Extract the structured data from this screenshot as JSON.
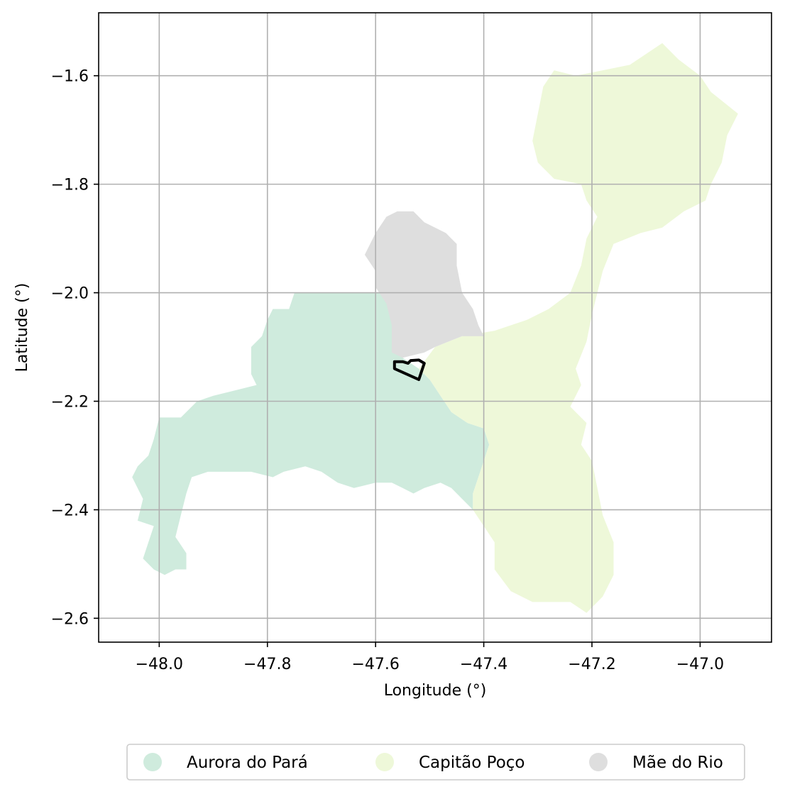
{
  "chart_data": {
    "type": "map",
    "title": "",
    "xlabel": "Longitude (°)",
    "ylabel": "Latitude (°)",
    "xlim": [
      -48.112,
      -46.868
    ],
    "ylim": [
      -2.644,
      -1.484
    ],
    "x_ticks": [
      -48.0,
      -47.8,
      -47.6,
      -47.4,
      -47.2,
      -47.0
    ],
    "x_tick_labels": [
      "−48.0",
      "−47.8",
      "−47.6",
      "−47.4",
      "−47.2",
      "−47.0"
    ],
    "y_ticks": [
      -1.6,
      -1.8,
      -2.0,
      -2.2,
      -2.4,
      -2.6
    ],
    "y_tick_labels": [
      "−1.6",
      "−1.8",
      "−2.0",
      "−2.2",
      "−2.4",
      "−2.6"
    ],
    "grid": true,
    "legend_position": "bottom-center",
    "series": [
      {
        "name": "Aurora do Pará",
        "color": "#cfebdd",
        "polygon": [
          [
            -47.75,
            -2.0
          ],
          [
            -47.59,
            -2.0
          ],
          [
            -47.57,
            -2.03
          ],
          [
            -47.57,
            -2.1
          ],
          [
            -47.55,
            -2.12
          ],
          [
            -47.52,
            -2.14
          ],
          [
            -47.5,
            -2.16
          ],
          [
            -47.48,
            -2.19
          ],
          [
            -47.46,
            -2.22
          ],
          [
            -47.43,
            -2.24
          ],
          [
            -47.4,
            -2.25
          ],
          [
            -47.39,
            -2.28
          ],
          [
            -47.4,
            -2.31
          ],
          [
            -47.41,
            -2.34
          ],
          [
            -47.42,
            -2.37
          ],
          [
            -47.42,
            -2.4
          ],
          [
            -47.44,
            -2.38
          ],
          [
            -47.46,
            -2.36
          ],
          [
            -47.48,
            -2.35
          ],
          [
            -47.51,
            -2.36
          ],
          [
            -47.53,
            -2.37
          ],
          [
            -47.55,
            -2.36
          ],
          [
            -47.57,
            -2.35
          ],
          [
            -47.6,
            -2.35
          ],
          [
            -47.64,
            -2.36
          ],
          [
            -47.67,
            -2.35
          ],
          [
            -47.7,
            -2.33
          ],
          [
            -47.73,
            -2.32
          ],
          [
            -47.77,
            -2.33
          ],
          [
            -47.79,
            -2.34
          ],
          [
            -47.83,
            -2.33
          ],
          [
            -47.87,
            -2.33
          ],
          [
            -47.91,
            -2.33
          ],
          [
            -47.94,
            -2.34
          ],
          [
            -47.95,
            -2.37
          ],
          [
            -47.96,
            -2.41
          ],
          [
            -47.97,
            -2.45
          ],
          [
            -47.95,
            -2.48
          ],
          [
            -47.95,
            -2.51
          ],
          [
            -47.97,
            -2.51
          ],
          [
            -47.99,
            -2.52
          ],
          [
            -48.01,
            -2.51
          ],
          [
            -48.03,
            -2.49
          ],
          [
            -48.02,
            -2.46
          ],
          [
            -48.01,
            -2.43
          ],
          [
            -48.04,
            -2.42
          ],
          [
            -48.03,
            -2.38
          ],
          [
            -48.05,
            -2.34
          ],
          [
            -48.04,
            -2.32
          ],
          [
            -48.02,
            -2.3
          ],
          [
            -48.01,
            -2.27
          ],
          [
            -48.0,
            -2.23
          ],
          [
            -47.96,
            -2.23
          ],
          [
            -47.93,
            -2.2
          ],
          [
            -47.9,
            -2.19
          ],
          [
            -47.86,
            -2.18
          ],
          [
            -47.82,
            -2.17
          ],
          [
            -47.83,
            -2.15
          ],
          [
            -47.83,
            -2.1
          ],
          [
            -47.81,
            -2.08
          ],
          [
            -47.8,
            -2.05
          ],
          [
            -47.79,
            -2.03
          ],
          [
            -47.76,
            -2.03
          ]
        ]
      },
      {
        "name": "Capitão Poço",
        "color": "#eef8d9",
        "polygon": [
          [
            -47.27,
            -1.59
          ],
          [
            -47.23,
            -1.6
          ],
          [
            -47.18,
            -1.59
          ],
          [
            -47.13,
            -1.58
          ],
          [
            -47.07,
            -1.54
          ],
          [
            -47.04,
            -1.57
          ],
          [
            -47.0,
            -1.6
          ],
          [
            -46.98,
            -1.63
          ],
          [
            -46.93,
            -1.67
          ],
          [
            -46.95,
            -1.71
          ],
          [
            -46.96,
            -1.76
          ],
          [
            -46.98,
            -1.8
          ],
          [
            -46.99,
            -1.83
          ],
          [
            -47.03,
            -1.85
          ],
          [
            -47.07,
            -1.88
          ],
          [
            -47.11,
            -1.89
          ],
          [
            -47.16,
            -1.91
          ],
          [
            -47.18,
            -1.96
          ],
          [
            -47.19,
            -2.0
          ],
          [
            -47.2,
            -2.04
          ],
          [
            -47.21,
            -2.09
          ],
          [
            -47.23,
            -2.14
          ],
          [
            -47.22,
            -2.17
          ],
          [
            -47.24,
            -2.21
          ],
          [
            -47.21,
            -2.24
          ],
          [
            -47.22,
            -2.28
          ],
          [
            -47.2,
            -2.31
          ],
          [
            -47.19,
            -2.36
          ],
          [
            -47.18,
            -2.41
          ],
          [
            -47.16,
            -2.46
          ],
          [
            -47.16,
            -2.52
          ],
          [
            -47.18,
            -2.56
          ],
          [
            -47.21,
            -2.59
          ],
          [
            -47.24,
            -2.57
          ],
          [
            -47.27,
            -2.57
          ],
          [
            -47.31,
            -2.57
          ],
          [
            -47.35,
            -2.55
          ],
          [
            -47.38,
            -2.51
          ],
          [
            -47.38,
            -2.46
          ],
          [
            -47.4,
            -2.43
          ],
          [
            -47.42,
            -2.4
          ],
          [
            -47.42,
            -2.37
          ],
          [
            -47.41,
            -2.34
          ],
          [
            -47.4,
            -2.31
          ],
          [
            -47.39,
            -2.28
          ],
          [
            -47.4,
            -2.25
          ],
          [
            -47.43,
            -2.24
          ],
          [
            -47.46,
            -2.22
          ],
          [
            -47.48,
            -2.19
          ],
          [
            -47.5,
            -2.16
          ],
          [
            -47.52,
            -2.14
          ],
          [
            -47.49,
            -2.1
          ],
          [
            -47.44,
            -2.08
          ],
          [
            -47.38,
            -2.07
          ],
          [
            -47.32,
            -2.05
          ],
          [
            -47.28,
            -2.03
          ],
          [
            -47.24,
            -2.0
          ],
          [
            -47.22,
            -1.95
          ],
          [
            -47.21,
            -1.9
          ],
          [
            -47.19,
            -1.86
          ],
          [
            -47.21,
            -1.83
          ],
          [
            -47.22,
            -1.8
          ],
          [
            -47.27,
            -1.79
          ],
          [
            -47.3,
            -1.76
          ],
          [
            -47.31,
            -1.72
          ],
          [
            -47.3,
            -1.67
          ],
          [
            -47.29,
            -1.62
          ]
        ]
      },
      {
        "name": "Mãe do Rio",
        "color": "#dedede",
        "polygon": [
          [
            -47.56,
            -1.85
          ],
          [
            -47.53,
            -1.85
          ],
          [
            -47.51,
            -1.87
          ],
          [
            -47.47,
            -1.89
          ],
          [
            -47.45,
            -1.91
          ],
          [
            -47.45,
            -1.95
          ],
          [
            -47.44,
            -2.0
          ],
          [
            -47.42,
            -2.03
          ],
          [
            -47.41,
            -2.06
          ],
          [
            -47.4,
            -2.08
          ],
          [
            -47.44,
            -2.08
          ],
          [
            -47.49,
            -2.1
          ],
          [
            -47.51,
            -2.11
          ],
          [
            -47.55,
            -2.12
          ],
          [
            -47.57,
            -2.11
          ],
          [
            -47.57,
            -2.06
          ],
          [
            -47.58,
            -2.02
          ],
          [
            -47.6,
            -1.99
          ],
          [
            -47.6,
            -1.96
          ],
          [
            -47.62,
            -1.93
          ],
          [
            -47.6,
            -1.89
          ],
          [
            -47.58,
            -1.86
          ]
        ]
      }
    ],
    "outline": {
      "color": "#000000",
      "polygon": [
        [
          -47.565,
          -2.127
        ],
        [
          -47.565,
          -2.14
        ],
        [
          -47.52,
          -2.16
        ],
        [
          -47.51,
          -2.13
        ],
        [
          -47.52,
          -2.124
        ],
        [
          -47.535,
          -2.125
        ],
        [
          -47.54,
          -2.13
        ],
        [
          -47.55,
          -2.127
        ]
      ]
    }
  }
}
